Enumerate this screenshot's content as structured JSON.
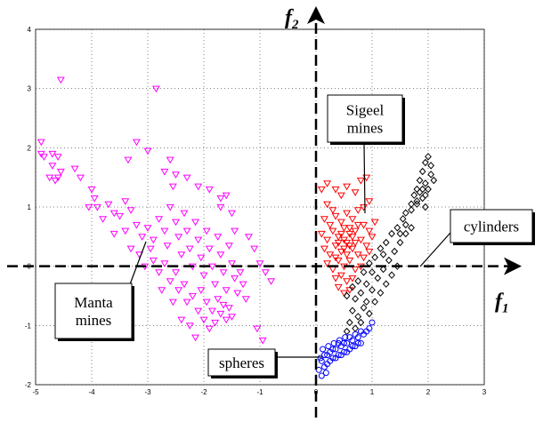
{
  "chart_data": {
    "type": "scatter",
    "title": "",
    "xlabel": "",
    "ylabel": "",
    "xlim": [
      -5,
      3
    ],
    "ylim": [
      -2,
      4
    ],
    "grid": true,
    "x_ticks": [
      -5,
      -4,
      -3,
      -2,
      -1,
      0,
      1,
      2,
      3
    ],
    "y_ticks": [
      -2,
      -1,
      0,
      1,
      2,
      3,
      4
    ],
    "feature_axes": {
      "horizontal": "f1",
      "vertical": "f2"
    },
    "series": [
      {
        "name": "Manta mines",
        "marker": "triangle-down",
        "color": "#ff00ff",
        "points": [
          [
            -4.9,
            2.1
          ],
          [
            -4.9,
            1.9
          ],
          [
            -4.85,
            1.85
          ],
          [
            -4.7,
            1.9
          ],
          [
            -4.6,
            1.85
          ],
          [
            -4.55,
            3.15
          ],
          [
            -4.55,
            1.6
          ],
          [
            -4.7,
            1.7
          ],
          [
            -4.75,
            1.5
          ],
          [
            -4.6,
            1.5
          ],
          [
            -4.65,
            1.45
          ],
          [
            -4.3,
            1.65
          ],
          [
            -4.2,
            1.5
          ],
          [
            -4.0,
            1.3
          ],
          [
            -3.95,
            1.15
          ],
          [
            -4.05,
            1.0
          ],
          [
            -3.9,
            1.0
          ],
          [
            -3.7,
            1.05
          ],
          [
            -3.8,
            0.8
          ],
          [
            -3.6,
            0.9
          ],
          [
            -3.5,
            0.85
          ],
          [
            -3.4,
            1.1
          ],
          [
            -3.3,
            0.95
          ],
          [
            -3.2,
            2.1
          ],
          [
            -3.35,
            1.8
          ],
          [
            -3.0,
            1.95
          ],
          [
            -2.85,
            3.0
          ],
          [
            -2.7,
            1.6
          ],
          [
            -2.6,
            1.8
          ],
          [
            -2.5,
            1.55
          ],
          [
            -2.55,
            1.35
          ],
          [
            -2.3,
            1.5
          ],
          [
            -2.1,
            1.35
          ],
          [
            -1.9,
            1.3
          ],
          [
            -1.7,
            1.15
          ],
          [
            -1.6,
            1.2
          ],
          [
            -1.7,
            1.0
          ],
          [
            -1.5,
            0.9
          ],
          [
            -1.45,
            0.6
          ],
          [
            -1.2,
            0.5
          ],
          [
            -1.1,
            0.3
          ],
          [
            -1.0,
            0.05
          ],
          [
            -0.9,
            -0.1
          ],
          [
            -0.8,
            -0.25
          ],
          [
            -1.05,
            -1.05
          ],
          [
            -0.95,
            -1.25
          ],
          [
            -3.6,
            0.55
          ],
          [
            -3.4,
            0.6
          ],
          [
            -3.2,
            0.7
          ],
          [
            -3.1,
            0.5
          ],
          [
            -3.0,
            0.65
          ],
          [
            -2.9,
            0.45
          ],
          [
            -2.8,
            0.8
          ],
          [
            -2.7,
            0.6
          ],
          [
            -2.65,
            0.35
          ],
          [
            -2.6,
            1.0
          ],
          [
            -2.5,
            0.75
          ],
          [
            -2.45,
            0.5
          ],
          [
            -2.4,
            0.2
          ],
          [
            -2.35,
            0.9
          ],
          [
            -2.3,
            0.6
          ],
          [
            -2.25,
            0.3
          ],
          [
            -2.2,
            0.0
          ],
          [
            -2.15,
            0.75
          ],
          [
            -2.1,
            0.45
          ],
          [
            -2.05,
            0.15
          ],
          [
            -2.0,
            -0.15
          ],
          [
            -1.95,
            0.6
          ],
          [
            -1.9,
            0.3
          ],
          [
            -1.85,
            0.0
          ],
          [
            -1.8,
            -0.3
          ],
          [
            -1.75,
            0.5
          ],
          [
            -1.7,
            0.2
          ],
          [
            -1.65,
            -0.1
          ],
          [
            -1.6,
            -0.4
          ],
          [
            -1.55,
            0.35
          ],
          [
            -1.5,
            0.05
          ],
          [
            -1.45,
            -0.2
          ],
          [
            -1.4,
            -0.45
          ],
          [
            -1.35,
            -0.1
          ],
          [
            -1.3,
            -0.3
          ],
          [
            -1.25,
            -0.55
          ],
          [
            -2.9,
            0.1
          ],
          [
            -2.8,
            -0.1
          ],
          [
            -2.7,
            0.05
          ],
          [
            -2.6,
            -0.25
          ],
          [
            -2.5,
            -0.1
          ],
          [
            -2.45,
            -0.4
          ],
          [
            -2.35,
            -0.3
          ],
          [
            -2.3,
            -0.6
          ],
          [
            -2.2,
            -0.5
          ],
          [
            -2.1,
            -0.75
          ],
          [
            -2.05,
            -0.4
          ],
          [
            -2.0,
            -0.9
          ],
          [
            -1.95,
            -0.6
          ],
          [
            -1.9,
            -1.05
          ],
          [
            -1.85,
            -0.75
          ],
          [
            -1.8,
            -0.95
          ],
          [
            -1.75,
            -0.55
          ],
          [
            -1.7,
            -0.8
          ],
          [
            -1.65,
            -0.65
          ],
          [
            -1.6,
            -0.9
          ],
          [
            -1.55,
            -0.7
          ],
          [
            -1.5,
            -0.85
          ],
          [
            -2.25,
            -1.0
          ],
          [
            -2.15,
            -1.2
          ],
          [
            -2.4,
            -0.9
          ],
          [
            -2.55,
            -0.6
          ],
          [
            -2.75,
            -0.4
          ],
          [
            -3.3,
            0.3
          ],
          [
            -3.15,
            0.2
          ],
          [
            -3.05,
            0.0
          ],
          [
            -2.95,
            0.3
          ]
        ]
      },
      {
        "name": "Sigeel mines",
        "marker": "triangle-down",
        "color": "#ff0000",
        "points": [
          [
            0.1,
            1.3
          ],
          [
            0.2,
            1.4
          ],
          [
            0.35,
            1.3
          ],
          [
            0.45,
            1.2
          ],
          [
            0.55,
            1.35
          ],
          [
            0.7,
            1.25
          ],
          [
            0.8,
            1.45
          ],
          [
            0.9,
            1.5
          ],
          [
            0.95,
            1.1
          ],
          [
            0.85,
            1.0
          ],
          [
            0.2,
            1.05
          ],
          [
            0.3,
            0.95
          ],
          [
            0.15,
            0.8
          ],
          [
            0.25,
            0.7
          ],
          [
            0.35,
            0.85
          ],
          [
            0.45,
            0.75
          ],
          [
            0.55,
            0.9
          ],
          [
            0.65,
            0.8
          ],
          [
            0.75,
            0.95
          ],
          [
            0.85,
            0.7
          ],
          [
            0.95,
            0.6
          ],
          [
            1.05,
            0.75
          ],
          [
            0.1,
            0.55
          ],
          [
            0.2,
            0.45
          ],
          [
            0.3,
            0.6
          ],
          [
            0.4,
            0.5
          ],
          [
            0.5,
            0.65
          ],
          [
            0.6,
            0.55
          ],
          [
            0.7,
            0.6
          ],
          [
            0.8,
            0.45
          ],
          [
            0.9,
            0.35
          ],
          [
            1.0,
            0.5
          ],
          [
            0.15,
            0.3
          ],
          [
            0.25,
            0.2
          ],
          [
            0.35,
            0.35
          ],
          [
            0.45,
            0.25
          ],
          [
            0.55,
            0.4
          ],
          [
            0.65,
            0.3
          ],
          [
            0.75,
            0.2
          ],
          [
            0.85,
            0.15
          ],
          [
            0.95,
            0.25
          ],
          [
            0.2,
            0.05
          ],
          [
            0.3,
            -0.05
          ],
          [
            0.4,
            0.1
          ],
          [
            0.5,
            0.0
          ],
          [
            0.6,
            0.1
          ],
          [
            0.7,
            -0.05
          ],
          [
            0.8,
            0.0
          ],
          [
            0.35,
            -0.2
          ],
          [
            0.45,
            -0.15
          ],
          [
            0.55,
            -0.25
          ],
          [
            0.65,
            -0.2
          ],
          [
            0.4,
            -0.35
          ],
          [
            0.5,
            -0.45
          ],
          [
            0.6,
            -0.4
          ],
          [
            0.5,
            0.45
          ],
          [
            0.6,
            0.35
          ],
          [
            0.55,
            0.2
          ],
          [
            0.45,
            0.55
          ],
          [
            0.65,
            0.5
          ],
          [
            0.4,
            0.4
          ],
          [
            0.7,
            0.4
          ],
          [
            0.5,
            0.3
          ],
          [
            0.6,
            0.65
          ],
          [
            0.35,
            0.15
          ],
          [
            0.75,
            0.7
          ]
        ]
      },
      {
        "name": "cylinders",
        "marker": "diamond",
        "color": "#000000",
        "points": [
          [
            0.55,
            -0.5
          ],
          [
            0.65,
            -0.35
          ],
          [
            0.75,
            -0.25
          ],
          [
            0.85,
            -0.1
          ],
          [
            0.95,
            0.05
          ],
          [
            1.05,
            0.15
          ],
          [
            1.15,
            0.3
          ],
          [
            1.25,
            0.4
          ],
          [
            1.35,
            0.55
          ],
          [
            1.45,
            0.65
          ],
          [
            1.55,
            0.8
          ],
          [
            1.6,
            0.9
          ],
          [
            1.7,
            0.95
          ],
          [
            1.8,
            1.05
          ],
          [
            1.9,
            1.15
          ],
          [
            1.95,
            1.0
          ],
          [
            0.7,
            -0.55
          ],
          [
            0.8,
            -0.45
          ],
          [
            0.9,
            -0.6
          ],
          [
            1.0,
            -0.4
          ],
          [
            1.1,
            -0.2
          ],
          [
            1.2,
            -0.05
          ],
          [
            1.3,
            0.1
          ],
          [
            1.4,
            0.25
          ],
          [
            1.5,
            0.4
          ],
          [
            1.6,
            0.55
          ],
          [
            1.7,
            0.65
          ],
          [
            0.65,
            -0.75
          ],
          [
            0.75,
            -0.85
          ],
          [
            0.85,
            -0.7
          ],
          [
            0.95,
            -0.8
          ],
          [
            1.05,
            -0.6
          ],
          [
            1.15,
            -0.45
          ],
          [
            1.25,
            -0.3
          ],
          [
            1.35,
            -0.15
          ],
          [
            1.45,
            0.0
          ],
          [
            0.6,
            -0.95
          ],
          [
            0.7,
            -1.05
          ],
          [
            0.8,
            -0.95
          ],
          [
            0.55,
            -1.1
          ],
          [
            1.8,
            1.3
          ],
          [
            1.85,
            1.45
          ],
          [
            1.9,
            1.6
          ],
          [
            1.95,
            1.75
          ],
          [
            2.0,
            1.85
          ],
          [
            1.75,
            1.2
          ],
          [
            1.85,
            1.25
          ],
          [
            1.95,
            1.4
          ],
          [
            2.05,
            1.55
          ],
          [
            1.9,
            1.3
          ],
          [
            2.0,
            1.3
          ],
          [
            2.05,
            1.7
          ],
          [
            1.8,
            1.1
          ],
          [
            1.95,
            1.2
          ],
          [
            2.1,
            1.45
          ],
          [
            1.7,
            1.05
          ],
          [
            1.6,
            0.7
          ],
          [
            1.5,
            0.55
          ],
          [
            1.2,
            0.2
          ],
          [
            1.0,
            -0.1
          ],
          [
            0.9,
            -0.3
          ]
        ]
      },
      {
        "name": "spheres",
        "marker": "circle",
        "color": "#0000ff",
        "points": [
          [
            0.05,
            -1.75
          ],
          [
            0.1,
            -1.6
          ],
          [
            0.15,
            -1.5
          ],
          [
            0.2,
            -1.65
          ],
          [
            0.25,
            -1.45
          ],
          [
            0.3,
            -1.55
          ],
          [
            0.35,
            -1.4
          ],
          [
            0.4,
            -1.5
          ],
          [
            0.45,
            -1.35
          ],
          [
            0.5,
            -1.45
          ],
          [
            0.55,
            -1.3
          ],
          [
            0.6,
            -1.4
          ],
          [
            0.65,
            -1.25
          ],
          [
            0.7,
            -1.35
          ],
          [
            0.75,
            -1.2
          ],
          [
            0.8,
            -1.3
          ],
          [
            0.85,
            -1.15
          ],
          [
            0.9,
            -1.1
          ],
          [
            0.1,
            -1.85
          ],
          [
            0.15,
            -1.7
          ],
          [
            0.2,
            -1.5
          ],
          [
            0.25,
            -1.6
          ],
          [
            0.3,
            -1.4
          ],
          [
            0.35,
            -1.55
          ],
          [
            0.4,
            -1.3
          ],
          [
            0.45,
            -1.5
          ],
          [
            0.5,
            -1.3
          ],
          [
            0.55,
            -1.45
          ],
          [
            0.6,
            -1.2
          ],
          [
            0.65,
            -1.35
          ],
          [
            0.7,
            -1.15
          ],
          [
            0.75,
            -1.3
          ],
          [
            0.8,
            -1.1
          ],
          [
            0.12,
            -1.4
          ],
          [
            0.22,
            -1.35
          ],
          [
            0.32,
            -1.3
          ],
          [
            0.42,
            -1.25
          ],
          [
            0.52,
            -1.2
          ],
          [
            0.95,
            -1.05
          ],
          [
            1.0,
            -0.95
          ],
          [
            0.08,
            -1.55
          ],
          [
            0.18,
            -1.8
          ]
        ]
      }
    ],
    "annotations": [
      {
        "text": [
          "Manta",
          "mines"
        ],
        "target": "Manta mines"
      },
      {
        "text": [
          "Sigeel",
          "mines"
        ],
        "target": "Sigeel mines"
      },
      {
        "text": [
          "cylinders"
        ],
        "target": "cylinders"
      },
      {
        "text": [
          "spheres"
        ],
        "target": "spheres"
      }
    ]
  }
}
